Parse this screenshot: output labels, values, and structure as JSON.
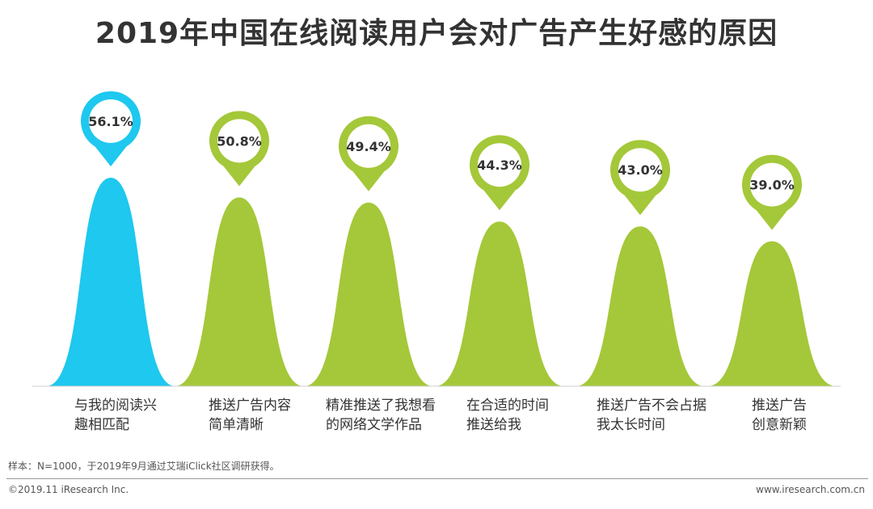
{
  "title": "2019年中国在线阅读用户会对广告产生好感的原因",
  "footnote": "样本：N=1000，于2019年9月通过艾瑞iClick社区调研获得。",
  "copyright": "©2019.11 iResearch Inc.",
  "website": "www.iresearch.com.cn",
  "colors": {
    "highlight": "#1ec8ef",
    "normal": "#a4c839",
    "text": "#333333"
  },
  "chart_data": {
    "type": "bar",
    "title": "2019年中国在线阅读用户会对广告产生好感的原因",
    "categories": [
      "与我的阅读兴\n趣相匹配",
      "推送广告内容\n简单清晰",
      "精准推送了我想看\n的网络文学作品",
      "在合适的时间\n推送给我",
      "推送广告不会占据\n我太长时间",
      "推送广告\n创意新颖"
    ],
    "values": [
      56.1,
      50.8,
      49.4,
      44.3,
      43.0,
      39.0
    ],
    "value_labels": [
      "56.1%",
      "50.8%",
      "49.4%",
      "44.3%",
      "43.0%",
      "39.0%"
    ],
    "highlight_index": 0,
    "xlabel": "",
    "ylabel": "",
    "grid": false
  }
}
